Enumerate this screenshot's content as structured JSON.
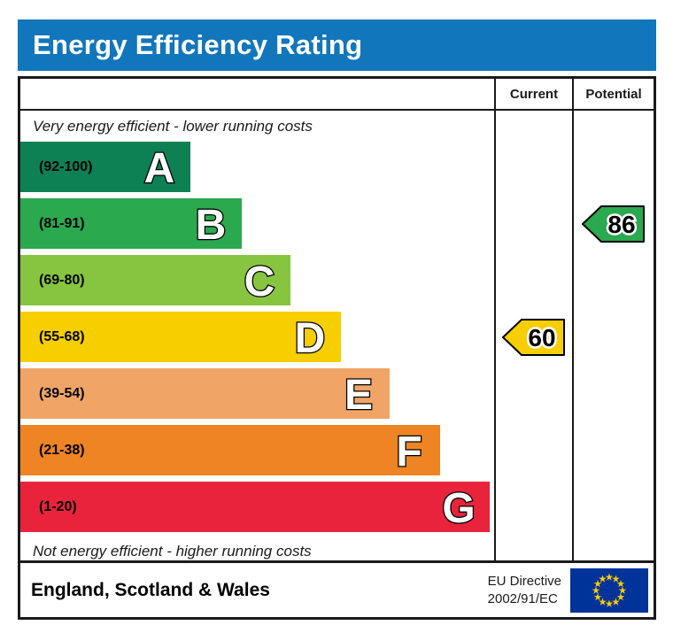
{
  "title": "Energy Efficiency Rating",
  "columns": {
    "current": "Current",
    "potential": "Potential"
  },
  "top_note": "Very energy efficient - lower running costs",
  "bottom_note": "Not energy efficient - higher running costs",
  "bands": [
    {
      "letter": "A",
      "range": "(92-100)",
      "color": "#0d8054",
      "width_pct": 35.9
    },
    {
      "letter": "B",
      "range": "(81-91)",
      "color": "#2aa94f",
      "width_pct": 46.7
    },
    {
      "letter": "C",
      "range": "(69-80)",
      "color": "#87c440",
      "width_pct": 57.0
    },
    {
      "letter": "D",
      "range": "(55-68)",
      "color": "#f7ce00",
      "width_pct": 67.7
    },
    {
      "letter": "E",
      "range": "(39-54)",
      "color": "#f0a567",
      "width_pct": 78.0
    },
    {
      "letter": "F",
      "range": "(21-38)",
      "color": "#ee8424",
      "width_pct": 88.6
    },
    {
      "letter": "G",
      "range": "(1-20)",
      "color": "#e9233c",
      "width_pct": 99.1
    }
  ],
  "ratings": {
    "current": {
      "label": "Current",
      "value": "60",
      "band": "D",
      "color": "#f7ce00"
    },
    "potential": {
      "label": "Potential",
      "value": "86",
      "band": "B",
      "color": "#2aa94f"
    }
  },
  "footer": {
    "region": "England, Scotland & Wales",
    "directive_line1": "EU Directive",
    "directive_line2": "2002/91/EC"
  },
  "theme": {
    "title_bar_blue": "#1176bc",
    "border_black": "#1a1a1a",
    "eu_flag_blue": "#003399",
    "eu_star_yellow": "#ffcc00"
  },
  "chart_data": {
    "type": "bar",
    "title": "Energy Efficiency Rating",
    "categories": [
      "A",
      "B",
      "C",
      "D",
      "E",
      "F",
      "G"
    ],
    "band_ranges": [
      "92-100",
      "81-91",
      "69-80",
      "55-68",
      "39-54",
      "21-38",
      "1-20"
    ],
    "band_colors": [
      "#0d8054",
      "#2aa94f",
      "#87c440",
      "#f7ce00",
      "#f0a567",
      "#ee8424",
      "#e9233c"
    ],
    "bar_lengths_pct": [
      35.9,
      46.7,
      57.0,
      67.7,
      78.0,
      88.6,
      99.1
    ],
    "series": [
      {
        "name": "Current",
        "value": 60,
        "band": "D"
      },
      {
        "name": "Potential",
        "value": 86,
        "band": "B"
      }
    ],
    "annotations": [
      "Very energy efficient - lower running costs",
      "Not energy efficient - higher running costs"
    ],
    "footer_region": "England, Scotland & Wales",
    "footer_directive": "EU Directive 2002/91/EC"
  }
}
